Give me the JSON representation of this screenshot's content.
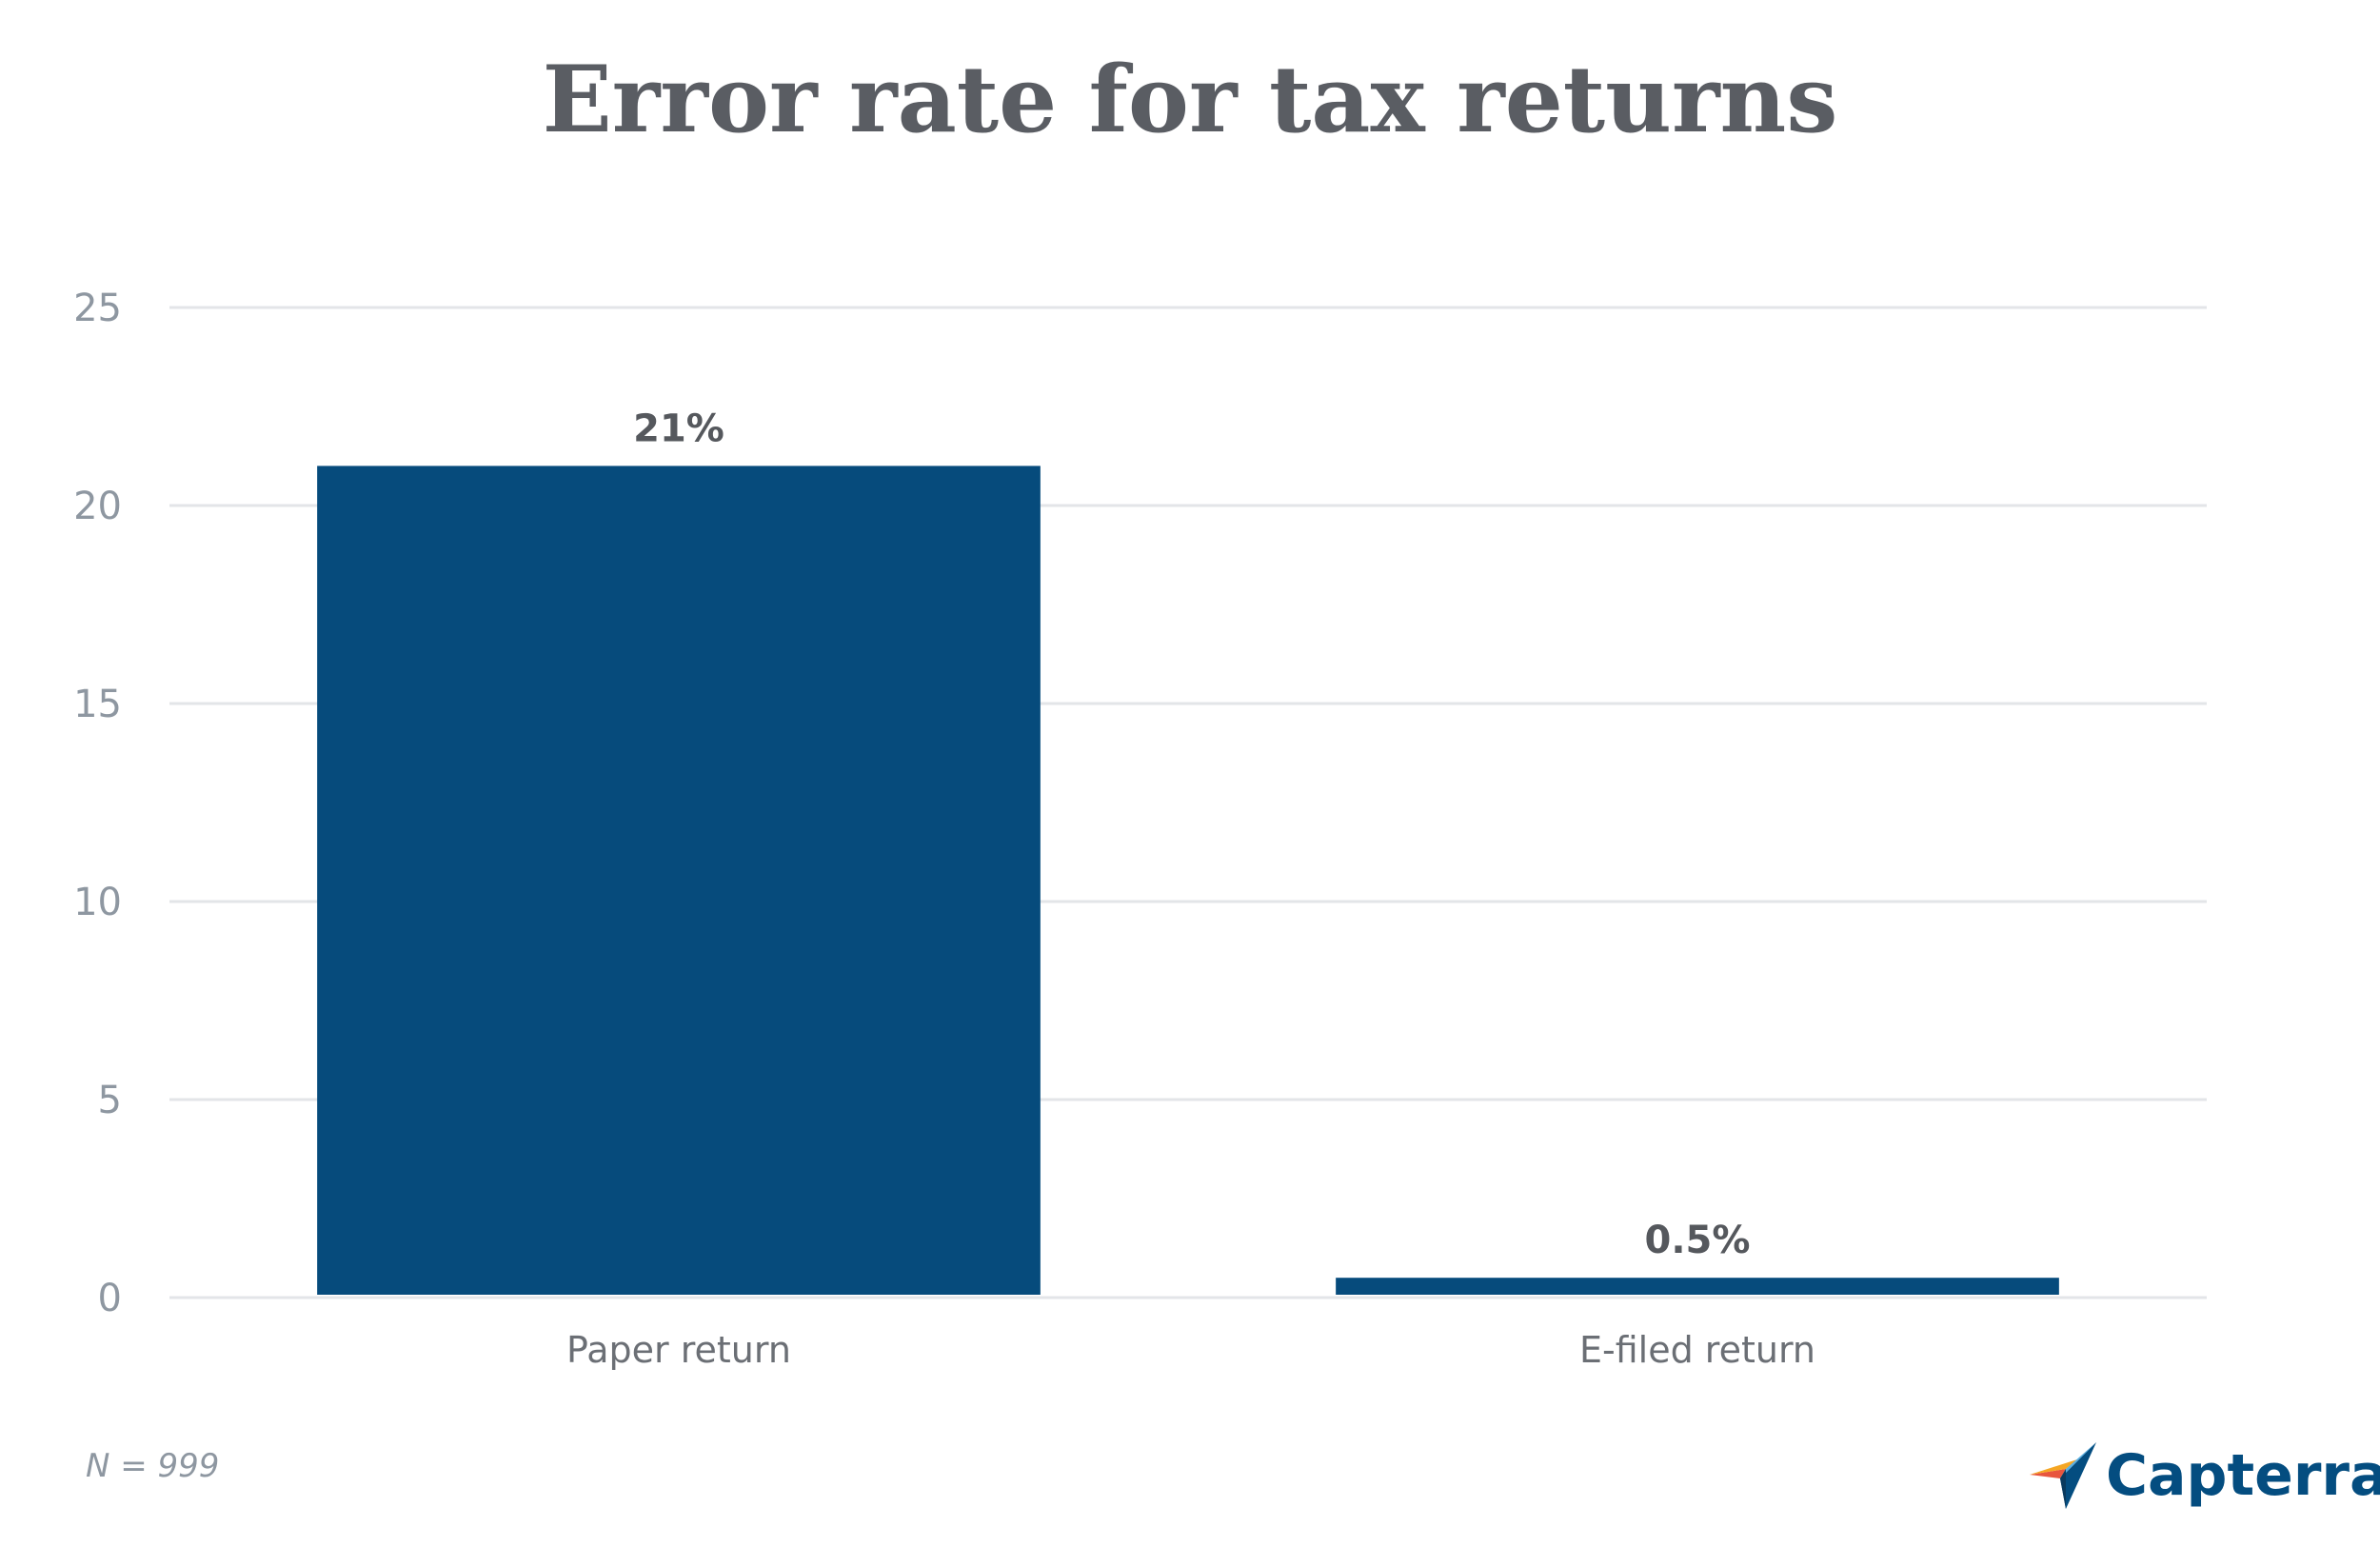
{
  "chart_data": {
    "type": "bar",
    "title": "Error rate for tax returns",
    "categories": [
      "Paper return",
      "E-filed return"
    ],
    "values": [
      21,
      0.5
    ],
    "data_labels": [
      "21%",
      "0.5%"
    ],
    "ylim": [
      0,
      25
    ],
    "y_ticks": [
      0,
      5,
      10,
      15,
      20,
      25
    ],
    "bar_color": "#064b7c",
    "grid": true,
    "xlabel": "",
    "ylabel": ""
  },
  "footnote": "N = 999",
  "logo": {
    "text": "Capterra",
    "icon": "capterra-arrow-icon",
    "colors": {
      "text": "#044d80",
      "orange": "#f5a623",
      "red": "#e8553e",
      "blue": "#5ab0e3",
      "navy": "#044d80"
    }
  }
}
